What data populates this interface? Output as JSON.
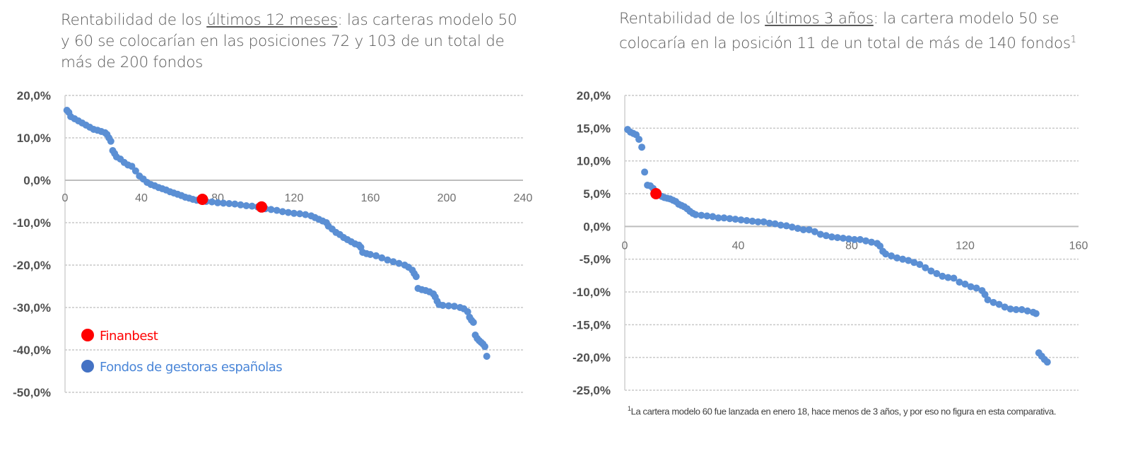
{
  "chart_data": [
    {
      "type": "scatter",
      "title_pre": "Rentabilidad de los ",
      "title_underlined": "últimos 12 meses",
      "title_post": ": las carteras modelo 50 y 60 se colocarían en las posiciones 72 y 103 de un total de más de 200 fondos",
      "xlim": [
        0,
        240
      ],
      "ylim": [
        -50,
        20
      ],
      "x_ticks": [
        0,
        40,
        80,
        120,
        160,
        200,
        240
      ],
      "x_tick_labels": [
        "0",
        "40",
        "80",
        "120",
        "160",
        "200",
        "240"
      ],
      "y_ticks": [
        20,
        10,
        0,
        -10,
        -20,
        -30,
        -40,
        -50
      ],
      "y_tick_labels": [
        "20,0%",
        "10,0%",
        "0,0%",
        "-10,0%",
        "-20,0%",
        "-30,0%",
        "-40,0%",
        "-50,0%"
      ],
      "grid": true,
      "legend_position": "bottom-left",
      "series": [
        {
          "name": "Fondos  de gestoras  españolas",
          "color": "#5b8fd4",
          "points": [
            [
              1,
              16.5
            ],
            [
              2,
              16
            ],
            [
              3,
              15
            ],
            [
              5,
              14.5
            ],
            [
              7,
              14
            ],
            [
              9,
              13.5
            ],
            [
              11,
              13
            ],
            [
              13,
              12.5
            ],
            [
              15,
              12
            ],
            [
              17,
              11.8
            ],
            [
              19,
              11.5
            ],
            [
              21,
              11.2
            ],
            [
              22,
              10.8
            ],
            [
              23,
              10
            ],
            [
              24,
              9.2
            ],
            [
              25,
              7
            ],
            [
              26,
              6.3
            ],
            [
              27,
              5.5
            ],
            [
              29,
              5
            ],
            [
              31,
              4.2
            ],
            [
              33,
              3.6
            ],
            [
              35,
              3.3
            ],
            [
              37,
              2.2
            ],
            [
              39,
              1
            ],
            [
              41,
              0.3
            ],
            [
              43,
              -0.5
            ],
            [
              45,
              -1
            ],
            [
              47,
              -1.3
            ],
            [
              49,
              -1.7
            ],
            [
              51,
              -2
            ],
            [
              53,
              -2.3
            ],
            [
              55,
              -2.7
            ],
            [
              57,
              -3
            ],
            [
              59,
              -3.3
            ],
            [
              61,
              -3.6
            ],
            [
              63,
              -4
            ],
            [
              65,
              -4.2
            ],
            [
              67,
              -4.5
            ],
            [
              69,
              -4.7
            ],
            [
              71,
              -4.8
            ],
            [
              74,
              -5
            ],
            [
              77,
              -5.1
            ],
            [
              80,
              -5.3
            ],
            [
              83,
              -5.4
            ],
            [
              86,
              -5.5
            ],
            [
              89,
              -5.6
            ],
            [
              92,
              -5.8
            ],
            [
              95,
              -6
            ],
            [
              98,
              -6.1
            ],
            [
              101,
              -6.3
            ],
            [
              105,
              -6.7
            ],
            [
              108,
              -6.9
            ],
            [
              111,
              -7.1
            ],
            [
              114,
              -7.4
            ],
            [
              117,
              -7.6
            ],
            [
              120,
              -7.8
            ],
            [
              123,
              -7.9
            ],
            [
              126,
              -8.1
            ],
            [
              129,
              -8.4
            ],
            [
              131,
              -8.8
            ],
            [
              133,
              -9.2
            ],
            [
              135,
              -9.6
            ],
            [
              137,
              -10
            ],
            [
              138,
              -10.8
            ],
            [
              140,
              -11.5
            ],
            [
              142,
              -12.3
            ],
            [
              144,
              -12.8
            ],
            [
              146,
              -13.5
            ],
            [
              148,
              -14
            ],
            [
              150,
              -14.5
            ],
            [
              152,
              -15
            ],
            [
              154,
              -15.3
            ],
            [
              155,
              -15.8
            ],
            [
              156,
              -17
            ],
            [
              158,
              -17.3
            ],
            [
              160,
              -17.5
            ],
            [
              163,
              -17.8
            ],
            [
              166,
              -18.3
            ],
            [
              169,
              -18.8
            ],
            [
              172,
              -19.2
            ],
            [
              175,
              -19.6
            ],
            [
              178,
              -20
            ],
            [
              180,
              -20.5
            ],
            [
              182,
              -21.2
            ],
            [
              183,
              -22
            ],
            [
              184,
              -22.7
            ],
            [
              185,
              -25.5
            ],
            [
              187,
              -25.8
            ],
            [
              189,
              -26
            ],
            [
              191,
              -26.3
            ],
            [
              193,
              -26.8
            ],
            [
              194,
              -27.5
            ],
            [
              195,
              -28.5
            ],
            [
              196,
              -29.3
            ],
            [
              198,
              -29.5
            ],
            [
              201,
              -29.6
            ],
            [
              204,
              -29.7
            ],
            [
              207,
              -30
            ],
            [
              209,
              -30.3
            ],
            [
              211,
              -31
            ],
            [
              212,
              -32.3
            ],
            [
              213,
              -33
            ],
            [
              214,
              -33.5
            ],
            [
              215,
              -36.5
            ],
            [
              216,
              -37.3
            ],
            [
              217,
              -37.8
            ],
            [
              218,
              -38.2
            ],
            [
              219,
              -38.6
            ],
            [
              220,
              -39.2
            ],
            [
              221,
              -41.5
            ]
          ]
        },
        {
          "name": "Finanbest",
          "color": "#ff0000",
          "points": [
            [
              72,
              -4.5
            ],
            [
              103,
              -6.3
            ]
          ]
        }
      ]
    },
    {
      "type": "scatter",
      "title_pre": "Rentabilidad de los ",
      "title_underlined": "últimos 3 años",
      "title_post": ": la cartera modelo 50 se colocaría en la posición 11 de un total de más de 140 fondos",
      "title_sup": "1",
      "xlim": [
        0,
        160
      ],
      "ylim": [
        -25,
        20
      ],
      "x_ticks": [
        0,
        40,
        80,
        120,
        160
      ],
      "x_tick_labels": [
        "0",
        "40",
        "80",
        "120",
        "160"
      ],
      "y_ticks": [
        20,
        15,
        10,
        5,
        0,
        -5,
        -10,
        -15,
        -20,
        -25
      ],
      "y_tick_labels": [
        "20,0%",
        "15,0%",
        "10,0%",
        "5,0%",
        "0,0%",
        "-5,0%",
        "-10,0%",
        "-15,0%",
        "-20,0%",
        "-25,0%"
      ],
      "grid": true,
      "footnote_sup": "1",
      "footnote": "La  cartera modelo 60 fue lanzada  en enero 18, hace menos de 3 años, y por eso no figura en esta comparativa.",
      "series": [
        {
          "color": "#5b8fd4",
          "points": [
            [
              1,
              14.8
            ],
            [
              2,
              14.4
            ],
            [
              3,
              14.2
            ],
            [
              4,
              14
            ],
            [
              5,
              13.3
            ],
            [
              6,
              12.1
            ],
            [
              7,
              8.3
            ],
            [
              8,
              6.3
            ],
            [
              9,
              6.2
            ],
            [
              10,
              5.8
            ],
            [
              12,
              4.8
            ],
            [
              13,
              4.6
            ],
            [
              14,
              4.4
            ],
            [
              15,
              4.3
            ],
            [
              16,
              4.2
            ],
            [
              17,
              4
            ],
            [
              18,
              3.8
            ],
            [
              19,
              3.4
            ],
            [
              20,
              3.2
            ],
            [
              21,
              3
            ],
            [
              22,
              2.7
            ],
            [
              23,
              2.3
            ],
            [
              24,
              2
            ],
            [
              25,
              1.8
            ],
            [
              27,
              1.7
            ],
            [
              29,
              1.6
            ],
            [
              31,
              1.5
            ],
            [
              33,
              1.3
            ],
            [
              35,
              1.3
            ],
            [
              37,
              1.2
            ],
            [
              39,
              1.1
            ],
            [
              41,
              1
            ],
            [
              43,
              0.9
            ],
            [
              45,
              0.8
            ],
            [
              47,
              0.7
            ],
            [
              49,
              0.7
            ],
            [
              51,
              0.5
            ],
            [
              53,
              0.4
            ],
            [
              55,
              0.2
            ],
            [
              57,
              0.1
            ],
            [
              59,
              -0.1
            ],
            [
              61,
              -0.3
            ],
            [
              63,
              -0.5
            ],
            [
              65,
              -0.5
            ],
            [
              67,
              -0.8
            ],
            [
              69,
              -1.2
            ],
            [
              71,
              -1.4
            ],
            [
              73,
              -1.6
            ],
            [
              75,
              -1.7
            ],
            [
              77,
              -1.8
            ],
            [
              79,
              -1.9
            ],
            [
              81,
              -2
            ],
            [
              83,
              -2
            ],
            [
              85,
              -2.2
            ],
            [
              87,
              -2.4
            ],
            [
              89,
              -2.6
            ],
            [
              90,
              -3
            ],
            [
              91,
              -3.8
            ],
            [
              92,
              -4.2
            ],
            [
              94,
              -4.5
            ],
            [
              96,
              -4.8
            ],
            [
              98,
              -5
            ],
            [
              100,
              -5.2
            ],
            [
              102,
              -5.5
            ],
            [
              104,
              -5.8
            ],
            [
              106,
              -6.3
            ],
            [
              108,
              -6.8
            ],
            [
              110,
              -7.2
            ],
            [
              112,
              -7.6
            ],
            [
              114,
              -7.8
            ],
            [
              116,
              -7.9
            ],
            [
              118,
              -8.5
            ],
            [
              120,
              -8.8
            ],
            [
              122,
              -9.2
            ],
            [
              124,
              -9.4
            ],
            [
              126,
              -9.8
            ],
            [
              127,
              -10.4
            ],
            [
              128,
              -11.2
            ],
            [
              130,
              -11.6
            ],
            [
              132,
              -11.9
            ],
            [
              134,
              -12.3
            ],
            [
              136,
              -12.6
            ],
            [
              138,
              -12.7
            ],
            [
              140,
              -12.7
            ],
            [
              142,
              -12.9
            ],
            [
              144,
              -13.1
            ],
            [
              145,
              -13.3
            ],
            [
              146,
              -19.3
            ],
            [
              147,
              -19.8
            ],
            [
              148,
              -20.3
            ],
            [
              149,
              -20.7
            ]
          ]
        },
        {
          "color": "#ff0000",
          "points": [
            [
              11,
              5.0
            ]
          ]
        }
      ]
    }
  ]
}
